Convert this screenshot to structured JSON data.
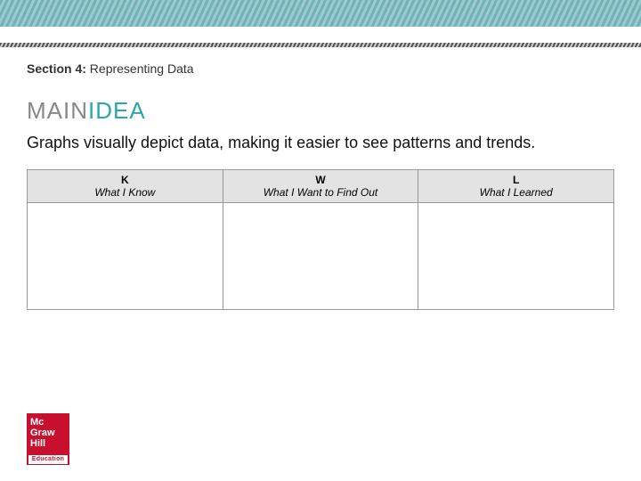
{
  "colors": {
    "teal": "#6fb3b8",
    "idea_teal": "#2aa8a8",
    "main_gray": "#888888",
    "logo_red": "#c8102e",
    "header_bg": "#e3e3e3",
    "border": "#999999"
  },
  "section": {
    "label": "Section 4:",
    "title": "Representing Data"
  },
  "mainidea": {
    "main": "MAIN",
    "idea": "IDEA"
  },
  "body_text": "Graphs visually depict data, making it easier to see patterns and trends.",
  "kwl": {
    "columns": [
      {
        "letter": "K",
        "sub": "What I Know"
      },
      {
        "letter": "W",
        "sub": "What I Want to Find Out"
      },
      {
        "letter": "L",
        "sub": "What I Learned"
      }
    ]
  },
  "logo": {
    "line1": "Mc",
    "line2": "Graw",
    "line3": "Hill",
    "footer": "Education"
  }
}
